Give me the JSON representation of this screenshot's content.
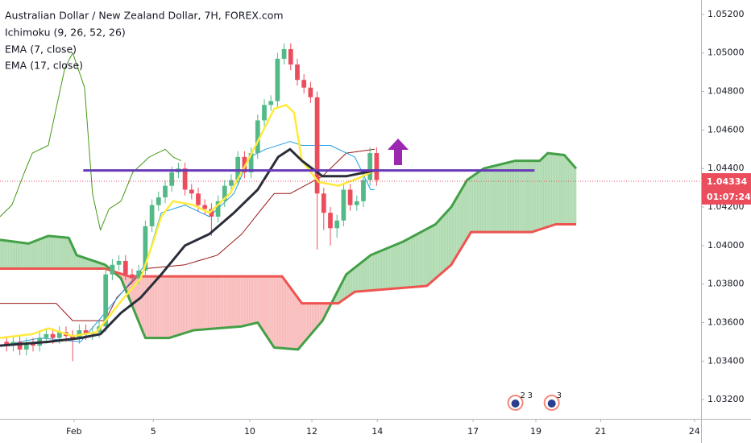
{
  "chart_data": {
    "type": "candlestick",
    "title": "Australian Dollar / New Zealand Dollar, 7H, FOREX.com",
    "x": [
      1,
      2,
      3,
      4,
      5,
      6,
      7,
      8,
      9,
      10,
      11,
      12,
      13,
      14,
      15,
      16,
      17,
      18,
      19,
      20,
      21,
      22,
      23,
      24,
      25,
      26,
      27,
      28,
      29,
      30,
      31,
      32,
      33,
      34,
      35,
      36,
      37,
      38,
      39,
      40,
      41,
      42,
      43,
      44,
      45,
      46,
      47,
      48,
      49,
      50,
      51,
      52,
      53,
      54,
      55,
      56,
      57
    ],
    "open": [
      1.035,
      1.0348,
      1.035,
      1.0346,
      1.0349,
      1.0348,
      1.0352,
      1.0354,
      1.0352,
      1.0355,
      1.0353,
      1.0352,
      1.0356,
      1.0354,
      1.0355,
      1.0358,
      1.0385,
      1.039,
      1.0392,
      1.0385,
      1.0383,
      1.0387,
      1.041,
      1.0421,
      1.0425,
      1.0431,
      1.0438,
      1.044,
      1.0429,
      1.0427,
      1.0421,
      1.0419,
      1.0415,
      1.0423,
      1.0431,
      1.0434,
      1.0446,
      1.0438,
      1.0448,
      1.0465,
      1.0473,
      1.0475,
      1.0497,
      1.0502,
      1.0494,
      1.0486,
      1.0482,
      1.0477,
      1.0427,
      1.0417,
      1.0409,
      1.0413,
      1.0429,
      1.0421,
      1.0423,
      1.0434,
      1.0448
    ],
    "high": [
      1.0353,
      1.0353,
      1.0353,
      1.0352,
      1.0352,
      1.0355,
      1.0357,
      1.0357,
      1.0358,
      1.0358,
      1.0356,
      1.0359,
      1.0359,
      1.0358,
      1.0361,
      1.0388,
      1.0393,
      1.0395,
      1.0395,
      1.0388,
      1.039,
      1.0413,
      1.0424,
      1.0428,
      1.0434,
      1.0441,
      1.0443,
      1.0443,
      1.0432,
      1.043,
      1.0424,
      1.0422,
      1.0426,
      1.0434,
      1.0437,
      1.0449,
      1.0449,
      1.0451,
      1.0468,
      1.0476,
      1.0478,
      1.05,
      1.0505,
      1.0505,
      1.0497,
      1.0489,
      1.0485,
      1.048,
      1.043,
      1.042,
      1.0416,
      1.0432,
      1.0432,
      1.0426,
      1.0437,
      1.0451,
      1.0451
    ],
    "low": [
      1.0345,
      1.0345,
      1.0343,
      1.0343,
      1.0345,
      1.0345,
      1.0349,
      1.0349,
      1.0349,
      1.035,
      1.034,
      1.0349,
      1.0351,
      1.0351,
      1.0352,
      1.0355,
      1.0382,
      1.0387,
      1.0382,
      1.038,
      1.038,
      1.0384,
      1.0407,
      1.0418,
      1.0422,
      1.0428,
      1.0435,
      1.0426,
      1.0424,
      1.0418,
      1.0416,
      1.0405,
      1.0412,
      1.042,
      1.0428,
      1.0431,
      1.0435,
      1.0435,
      1.0445,
      1.0462,
      1.047,
      1.0472,
      1.0494,
      1.0491,
      1.0483,
      1.0479,
      1.0474,
      1.0398,
      1.0408,
      1.04,
      1.0404,
      1.041,
      1.0418,
      1.0418,
      1.042,
      1.0431,
      1.0431
    ],
    "close": [
      1.0348,
      1.035,
      1.0346,
      1.0349,
      1.0348,
      1.0352,
      1.0354,
      1.0352,
      1.0355,
      1.0353,
      1.0352,
      1.0356,
      1.0354,
      1.0355,
      1.0358,
      1.0385,
      1.039,
      1.0392,
      1.0385,
      1.0383,
      1.0387,
      1.041,
      1.0421,
      1.0425,
      1.0431,
      1.0438,
      1.044,
      1.0429,
      1.0427,
      1.0421,
      1.0419,
      1.0415,
      1.0423,
      1.0431,
      1.0434,
      1.0446,
      1.0438,
      1.0448,
      1.0465,
      1.0473,
      1.0475,
      1.0497,
      1.0502,
      1.0494,
      1.0486,
      1.0482,
      1.0477,
      1.0427,
      1.0417,
      1.0409,
      1.0413,
      1.0429,
      1.0421,
      1.0423,
      1.0434,
      1.0448,
      1.0434
    ],
    "up_color": "#53b987",
    "down_color": "#eb4d5c",
    "ichimoku": {
      "name": "Ichimoku (9, 26, 52, 26)",
      "conversion": {
        "color": "#1e9ee6",
        "x": [
          0,
          6.1,
          12.2,
          15.9,
          18.3,
          22,
          24.4,
          28,
          31.7,
          35.4,
          37.8,
          40.2,
          43.9,
          45.7,
          50,
          53.7,
          56.1,
          56.7
        ],
        "values": [
          1.0348,
          1.0352,
          1.035,
          1.0365,
          1.0375,
          1.039,
          1.0417,
          1.0421,
          1.0415,
          1.0427,
          1.0446,
          1.045,
          1.0454,
          1.0452,
          1.0452,
          1.0446,
          1.0429,
          1.0429
        ]
      },
      "base": {
        "color": "#991515",
        "x": [
          0,
          8.5,
          11,
          15.9,
          17.7,
          22,
          28,
          32.9,
          36.6,
          39.6,
          41.5,
          43.9,
          48.8,
          52.4,
          56.7
        ],
        "values": [
          1.037,
          1.037,
          1.0361,
          1.0361,
          1.0373,
          1.0388,
          1.039,
          1.0395,
          1.0406,
          1.0419,
          1.0427,
          1.0427,
          1.0436,
          1.0448,
          1.045
        ]
      },
      "lagging": {
        "color": "#459915",
        "x": [
          0,
          1.8,
          3.7,
          4.9,
          7.3,
          9.8,
          11,
          12.8,
          14,
          15.2,
          16.5,
          18.3,
          20.1,
          22.6,
          25,
          26.2,
          27.4
        ],
        "values": [
          1.0415,
          1.0421,
          1.0438,
          1.0448,
          1.0452,
          1.0492,
          1.05,
          1.0482,
          1.0427,
          1.0408,
          1.0419,
          1.0423,
          1.0438,
          1.0446,
          1.045,
          1.0446,
          1.0444
        ]
      },
      "span_a": {
        "color": "#43a047",
        "fill": "#a5d6a7",
        "x": [
          0,
          4.3,
          7.3,
          10.4,
          11.6,
          15.9,
          18.3,
          22,
          25.6,
          29.3,
          36.6,
          39,
          41.5,
          45.1,
          48.8,
          52.4,
          56.1,
          61,
          65.9,
          68.3,
          70.7,
          73.2,
          78,
          81.7,
          82.9,
          85.4,
          87.2
        ],
        "values": [
          1.0403,
          1.0401,
          1.0405,
          1.0404,
          1.0395,
          1.039,
          1.0383,
          1.0352,
          1.0352,
          1.0356,
          1.0358,
          1.036,
          1.0347,
          1.0346,
          1.0361,
          1.0385,
          1.0395,
          1.0402,
          1.0411,
          1.042,
          1.0434,
          1.044,
          1.0444,
          1.0444,
          1.0448,
          1.0447,
          1.044
        ]
      },
      "span_b": {
        "color": "#ef5350",
        "fill": "#f8b4b4",
        "x": [
          0,
          15.9,
          19.5,
          42.7,
          45.7,
          51.2,
          53.7,
          64.6,
          68.3,
          71.3,
          80.5,
          84.1,
          87.2
        ],
        "values": [
          1.0388,
          1.0388,
          1.0384,
          1.0384,
          1.037,
          1.037,
          1.0376,
          1.0379,
          1.039,
          1.0407,
          1.0407,
          1.0411,
          1.0411
        ]
      }
    },
    "series": [
      {
        "name": "EMA (7, close)",
        "color": "#ffeb3b",
        "x": [
          0,
          4.9,
          7.3,
          11,
          14.6,
          18.3,
          21.3,
          23.2,
          24.4,
          26.2,
          29.3,
          31.7,
          34.8,
          37.2,
          39,
          41.5,
          43.3,
          44.5,
          45.7,
          48.2,
          51.2,
          54.3,
          56.7
        ],
        "values": [
          1.0352,
          1.0354,
          1.0357,
          1.0353,
          1.0355,
          1.0371,
          1.0383,
          1.0402,
          1.0415,
          1.0423,
          1.0421,
          1.0417,
          1.0427,
          1.0442,
          1.0454,
          1.0471,
          1.0473,
          1.0469,
          1.0444,
          1.0433,
          1.0431,
          1.0435,
          1.0439
        ]
      },
      {
        "name": "EMA (17, close)",
        "color": "#2a2e39",
        "x": [
          0,
          7.3,
          12.2,
          15.2,
          18.3,
          21.3,
          24.4,
          28,
          31.7,
          35.4,
          39,
          42.1,
          43.9,
          45.7,
          48.8,
          52.4,
          56.7
        ],
        "values": [
          1.0348,
          1.035,
          1.0352,
          1.0354,
          1.0365,
          1.0373,
          1.0385,
          1.04,
          1.0406,
          1.0417,
          1.0429,
          1.0446,
          1.045,
          1.0444,
          1.0436,
          1.0436,
          1.0439
        ]
      }
    ],
    "hline": {
      "value": 1.0439,
      "x": [
        12.6,
        80.9
      ],
      "color": "#673ab7"
    },
    "last_price": {
      "value": 1.04334,
      "label": "1.04334"
    },
    "countdown": "01:07:24",
    "events": [
      {
        "x": 78,
        "labels": [
          "2",
          "3"
        ]
      },
      {
        "x": 83.5,
        "labels": [
          "3"
        ]
      }
    ],
    "xlim": [
      0,
      106.1
    ],
    "ylim": [
      1.031,
      1.05275
    ],
    "xticks": [
      {
        "value": 11.2,
        "label": "Feb"
      },
      {
        "value": 23.2,
        "label": "5"
      },
      {
        "value": 37.8,
        "label": "10"
      },
      {
        "value": 47.2,
        "label": "12"
      },
      {
        "value": 57.1,
        "label": "14"
      },
      {
        "value": 71.6,
        "label": "17"
      },
      {
        "value": 81.1,
        "label": "19"
      },
      {
        "value": 90.9,
        "label": "21"
      },
      {
        "value": 105.1,
        "label": "24"
      }
    ],
    "yticks": [
      {
        "value": 1.032,
        "label": "1.03200"
      },
      {
        "value": 1.034,
        "label": "1.03400"
      },
      {
        "value": 1.036,
        "label": "1.03600"
      },
      {
        "value": 1.038,
        "label": "1.03800"
      },
      {
        "value": 1.04,
        "label": "1.04000"
      },
      {
        "value": 1.042,
        "label": "1.04200"
      },
      {
        "value": 1.044,
        "label": "1.04400"
      },
      {
        "value": 1.046,
        "label": "1.04600"
      },
      {
        "value": 1.048,
        "label": "1.04800"
      },
      {
        "value": 1.05,
        "label": "1.05000"
      },
      {
        "value": 1.052,
        "label": "1.05200"
      }
    ]
  }
}
